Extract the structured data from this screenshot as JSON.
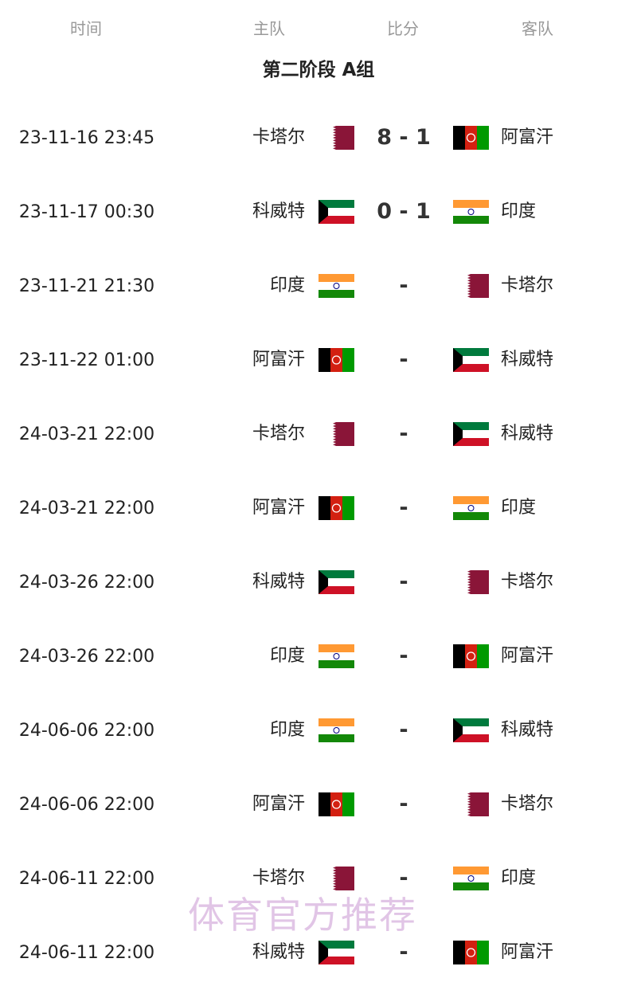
{
  "header": {
    "time": "时间",
    "home": "主队",
    "score": "比分",
    "away": "客队"
  },
  "title": "第二阶段 A组",
  "matches": [
    {
      "time": "23-11-16 23:45",
      "home": "卡塔尔",
      "home_flag": "qatar",
      "score": "8 - 1",
      "away": "阿富汗",
      "away_flag": "afghanistan"
    },
    {
      "time": "23-11-17 00:30",
      "home": "科威特",
      "home_flag": "kuwait",
      "score": "0 - 1",
      "away": "印度",
      "away_flag": "india"
    },
    {
      "time": "23-11-21 21:30",
      "home": "印度",
      "home_flag": "india",
      "score": "-",
      "away": "卡塔尔",
      "away_flag": "qatar"
    },
    {
      "time": "23-11-22 01:00",
      "home": "阿富汗",
      "home_flag": "afghanistan",
      "score": "-",
      "away": "科威特",
      "away_flag": "kuwait"
    },
    {
      "time": "24-03-21 22:00",
      "home": "卡塔尔",
      "home_flag": "qatar",
      "score": "-",
      "away": "科威特",
      "away_flag": "kuwait"
    },
    {
      "time": "24-03-21 22:00",
      "home": "阿富汗",
      "home_flag": "afghanistan",
      "score": "-",
      "away": "印度",
      "away_flag": "india"
    },
    {
      "time": "24-03-26 22:00",
      "home": "科威特",
      "home_flag": "kuwait",
      "score": "-",
      "away": "卡塔尔",
      "away_flag": "qatar"
    },
    {
      "time": "24-03-26 22:00",
      "home": "印度",
      "home_flag": "india",
      "score": "-",
      "away": "阿富汗",
      "away_flag": "afghanistan"
    },
    {
      "time": "24-06-06 22:00",
      "home": "印度",
      "home_flag": "india",
      "score": "-",
      "away": "科威特",
      "away_flag": "kuwait"
    },
    {
      "time": "24-06-06 22:00",
      "home": "阿富汗",
      "home_flag": "afghanistan",
      "score": "-",
      "away": "卡塔尔",
      "away_flag": "qatar"
    },
    {
      "time": "24-06-11 22:00",
      "home": "卡塔尔",
      "home_flag": "qatar",
      "score": "-",
      "away": "印度",
      "away_flag": "india"
    },
    {
      "time": "24-06-11 22:00",
      "home": "科威特",
      "home_flag": "kuwait",
      "score": "-",
      "away": "阿富汗",
      "away_flag": "afghanistan"
    }
  ],
  "watermark": "体育官方推荐"
}
